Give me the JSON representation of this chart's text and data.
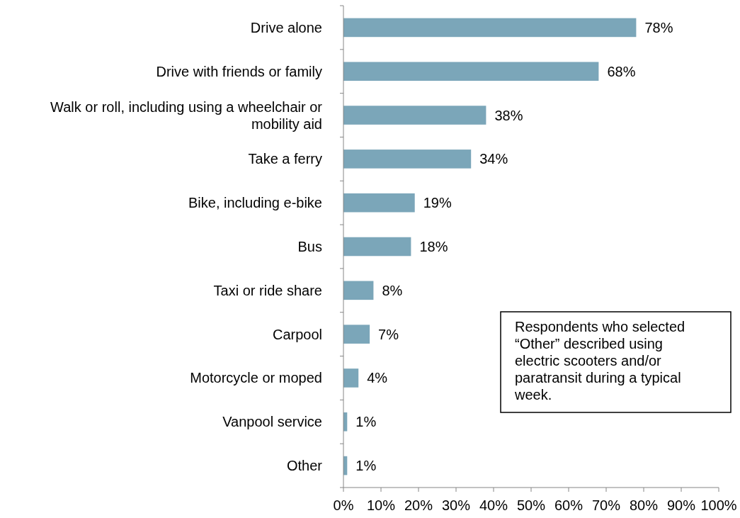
{
  "chart_data": {
    "type": "bar",
    "orientation": "horizontal",
    "categories": [
      "Drive alone",
      "Drive with friends or family",
      "Walk or roll, including using a wheelchair or mobility aid",
      "Take a ferry",
      "Bike, including e-bike",
      "Bus",
      "Taxi or ride share",
      "Carpool",
      "Motorcycle or moped",
      "Vanpool service",
      "Other"
    ],
    "values": [
      78,
      68,
      38,
      34,
      19,
      18,
      8,
      7,
      4,
      1,
      1
    ],
    "color": "#7ba6b9",
    "xlim": [
      0,
      100
    ],
    "xticks": [
      {
        "value": 0,
        "label": "0%"
      },
      {
        "value": 10,
        "label": "10%"
      },
      {
        "value": 20,
        "label": "20%"
      },
      {
        "value": 30,
        "label": "30%"
      },
      {
        "value": 40,
        "label": "40%"
      },
      {
        "value": 50,
        "label": "50%"
      },
      {
        "value": 60,
        "label": "60%"
      },
      {
        "value": 70,
        "label": "70%"
      },
      {
        "value": 80,
        "label": "80%"
      },
      {
        "value": 90,
        "label": "90%"
      },
      {
        "value": 100,
        "label": "100%"
      }
    ],
    "value_labels": [
      "78%",
      "68%",
      "38%",
      "34%",
      "19%",
      "18%",
      "8%",
      "7%",
      "4%",
      "1%",
      "1%"
    ],
    "annotations": [
      "Respondents who selected “Other” described using electric scooters and/or paratransit during a typical week."
    ]
  }
}
